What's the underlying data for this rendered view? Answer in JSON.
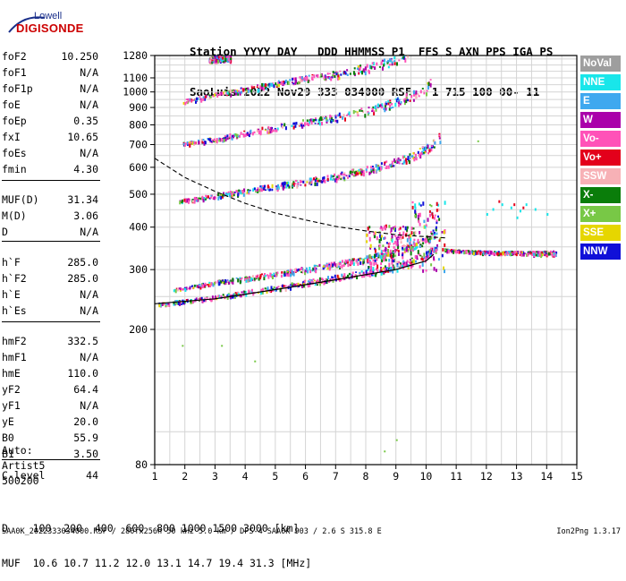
{
  "logo": {
    "line1": "Lowell",
    "line2": "DIGISONDE"
  },
  "header": {
    "line1": "Station YYYY DAY   DDD HHMMSS P1  FFS S AXN PPS IGA PS",
    "line2": "SaoLuis 2022 Nov29 333 034000 RSF   1 715 100 00- 11"
  },
  "params": [
    {
      "label": "foF2",
      "value": "10.250"
    },
    {
      "label": "foF1",
      "value": "N/A"
    },
    {
      "label": "foF1p",
      "value": "N/A"
    },
    {
      "label": "foE",
      "value": "N/A"
    },
    {
      "label": "foEp",
      "value": "0.35"
    },
    {
      "label": "fxI",
      "value": "10.65"
    },
    {
      "label": "foEs",
      "value": "N/A"
    },
    {
      "label": "fmin",
      "value": "4.30"
    },
    {
      "label": "MUF(D)",
      "value": "31.34"
    },
    {
      "label": "M(D)",
      "value": "3.06"
    },
    {
      "label": "D",
      "value": "N/A"
    },
    {
      "label": "h`F",
      "value": "285.0"
    },
    {
      "label": "h`F2",
      "value": "285.0"
    },
    {
      "label": "h`E",
      "value": "N/A"
    },
    {
      "label": "h`Es",
      "value": "N/A"
    },
    {
      "label": "hmF2",
      "value": "332.5"
    },
    {
      "label": "hmF1",
      "value": "N/A"
    },
    {
      "label": "hmE",
      "value": "110.0"
    },
    {
      "label": "yF2",
      "value": "64.4"
    },
    {
      "label": "yF1",
      "value": "N/A"
    },
    {
      "label": "yE",
      "value": "20.0"
    },
    {
      "label": "B0",
      "value": "55.9"
    },
    {
      "label": "B1",
      "value": "3.50"
    },
    {
      "label": "C-level",
      "value": "44"
    }
  ],
  "autoscale": {
    "line1": "Auto:",
    "line2": "Artist5",
    "line3": "500200"
  },
  "legend": [
    {
      "label": "NoVal",
      "color": "#9e9e9e"
    },
    {
      "label": "NNE",
      "color": "#19e6ea"
    },
    {
      "label": "E",
      "color": "#3fa8ef"
    },
    {
      "label": "W",
      "color": "#aa00aa"
    },
    {
      "label": "Vo-",
      "color": "#ff52b8"
    },
    {
      "label": "Vo+",
      "color": "#e3001b"
    },
    {
      "label": "SSW",
      "color": "#f7b1b6"
    },
    {
      "label": "X-",
      "color": "#0a7d0a"
    },
    {
      "label": "X+",
      "color": "#78c846"
    },
    {
      "label": "SSE",
      "color": "#e6d600"
    },
    {
      "label": "NNW",
      "color": "#1010d8"
    }
  ],
  "chart_data": {
    "type": "scatter",
    "title": "",
    "xlabel": "",
    "ylabel": "",
    "xlim": [
      1,
      15
    ],
    "ylim": [
      80,
      1280
    ],
    "y_scale": "log",
    "x_ticks": [
      1,
      2,
      3,
      4,
      5,
      6,
      7,
      8,
      9,
      10,
      11,
      12,
      13,
      14,
      15
    ],
    "y_ticks": [
      80,
      200,
      300,
      400,
      500,
      600,
      700,
      800,
      900,
      1000,
      1100,
      1280
    ],
    "grid": true,
    "traces": [
      {
        "name": "O-trace F2",
        "points": [
          [
            1.6,
            262
          ],
          [
            3,
            276
          ],
          [
            5,
            292
          ],
          [
            7,
            312
          ],
          [
            8.5,
            330
          ],
          [
            9.5,
            350
          ],
          [
            10.1,
            375
          ],
          [
            10.35,
            410
          ]
        ]
      },
      {
        "name": "X-trace F2",
        "points": [
          [
            1.1,
            238
          ],
          [
            3,
            250
          ],
          [
            5,
            266
          ],
          [
            7,
            285
          ],
          [
            8.5,
            300
          ],
          [
            9.5,
            320
          ],
          [
            10.3,
            345
          ],
          [
            10.55,
            380
          ]
        ]
      },
      {
        "name": "second hop",
        "points": [
          [
            1.8,
            478
          ],
          [
            3,
            496
          ],
          [
            5,
            530
          ],
          [
            7,
            565
          ],
          [
            8.5,
            605
          ],
          [
            9.5,
            645
          ],
          [
            10.1,
            690
          ],
          [
            10.45,
            740
          ]
        ]
      },
      {
        "name": "third hop",
        "points": [
          [
            1.9,
            705
          ],
          [
            3,
            730
          ],
          [
            5,
            790
          ],
          [
            7,
            845
          ],
          [
            8.5,
            905
          ],
          [
            9.5,
            975
          ],
          [
            10,
            1030
          ],
          [
            10.2,
            1080
          ]
        ]
      },
      {
        "name": "fourth hop",
        "points": [
          [
            1.9,
            940
          ],
          [
            3,
            985
          ],
          [
            5,
            1060
          ],
          [
            7,
            1130
          ],
          [
            8.5,
            1210
          ],
          [
            9.4,
            1280
          ]
        ]
      },
      {
        "name": "fifth hop",
        "points": [
          [
            2.8,
            1250
          ],
          [
            3.5,
            1280
          ]
        ]
      },
      {
        "name": "spread F",
        "points": [
          [
            10.6,
            345
          ],
          [
            11.5,
            340
          ],
          [
            12.5,
            338
          ],
          [
            13.5,
            337
          ],
          [
            14.3,
            337
          ]
        ]
      }
    ],
    "profile_solid": [
      [
        1.0,
        238
      ],
      [
        3,
        246
      ],
      [
        5,
        262
      ],
      [
        7,
        280
      ],
      [
        9,
        300
      ],
      [
        10,
        318
      ],
      [
        10.25,
        332.5
      ]
    ],
    "profile_dashed": [
      [
        1.0,
        638
      ],
      [
        2,
        560
      ],
      [
        3,
        510
      ],
      [
        4,
        470
      ],
      [
        5,
        440
      ],
      [
        6,
        420
      ],
      [
        7,
        402
      ],
      [
        8,
        390
      ],
      [
        9,
        380
      ],
      [
        10,
        375
      ],
      [
        10.65,
        372
      ]
    ]
  },
  "bottom": {
    "dist_line": "D    100  200  400  600  800 1000 1500 3000 [km]",
    "muf_line": "MUF  10.6 10.7 11.2 12.0 13.1 14.7 19.4 31.3 [MHz]"
  },
  "footer": "SAA0K_2022333034000.RSF / 280fx256h 50 kHz 5.0 km / DPS-4 SAA0K 903 / 2.6 S 315.8 E",
  "version": "Ion2Png 1.3.17"
}
